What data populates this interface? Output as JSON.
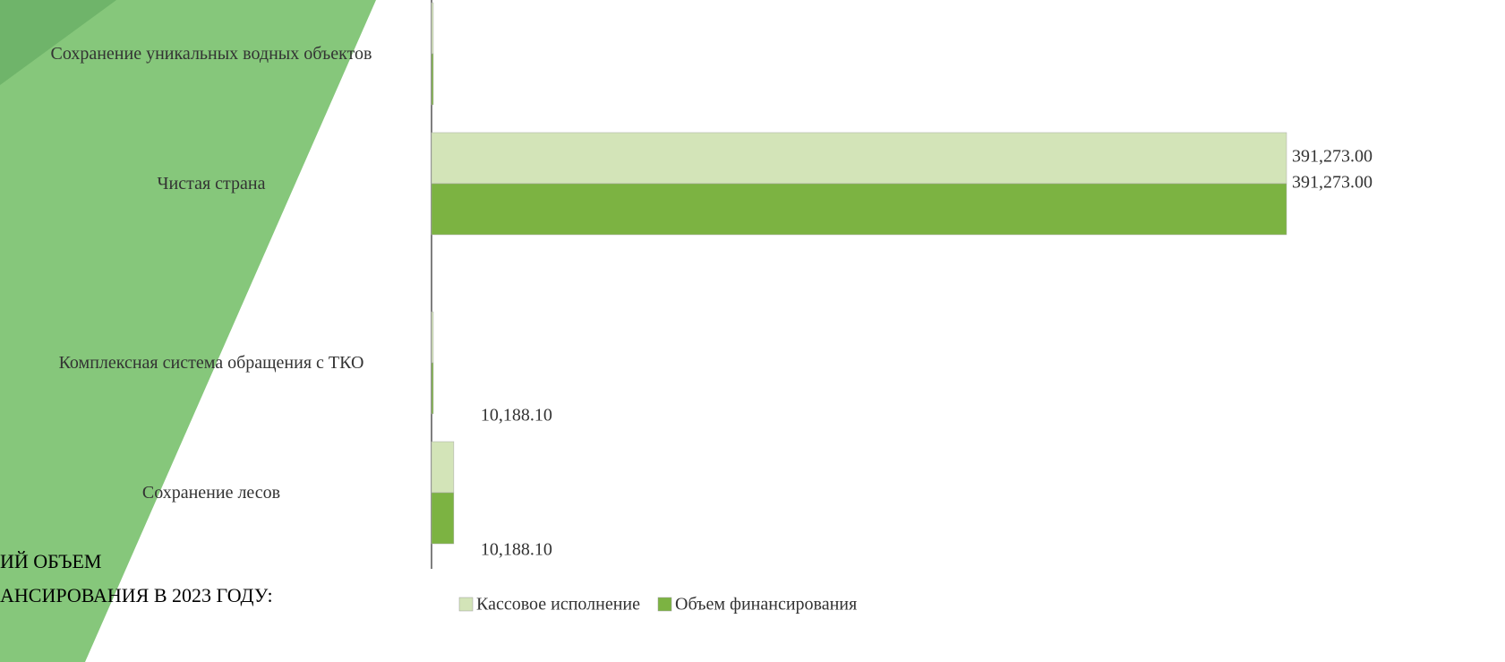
{
  "chart_data": {
    "type": "barh",
    "categories": [
      "Сохранение уникальных водных объектов",
      "Чистая страна",
      "Комплексная система обращения с ТКО",
      "Сохранение лесов"
    ],
    "series": [
      {
        "name": "Кассовое исполнение",
        "color": "#d3e4b8",
        "values": [
          800,
          391273,
          800,
          10188.1
        ],
        "value_labels": [
          null,
          "391,273.00",
          null,
          "10,188.10"
        ]
      },
      {
        "name": "Объем финансирования",
        "color": "#7cb342",
        "values": [
          800,
          391273,
          800,
          10188.1
        ],
        "value_labels": [
          null,
          "391,273.00",
          null,
          "10,188.10"
        ]
      }
    ],
    "xlim": [
      0,
      391273
    ],
    "legend": "bottom"
  },
  "heading_lines": [
    "ИЙ ОБЪЕМ",
    "АНСИРОВАНИЯ В 2023 ГОДУ:"
  ]
}
